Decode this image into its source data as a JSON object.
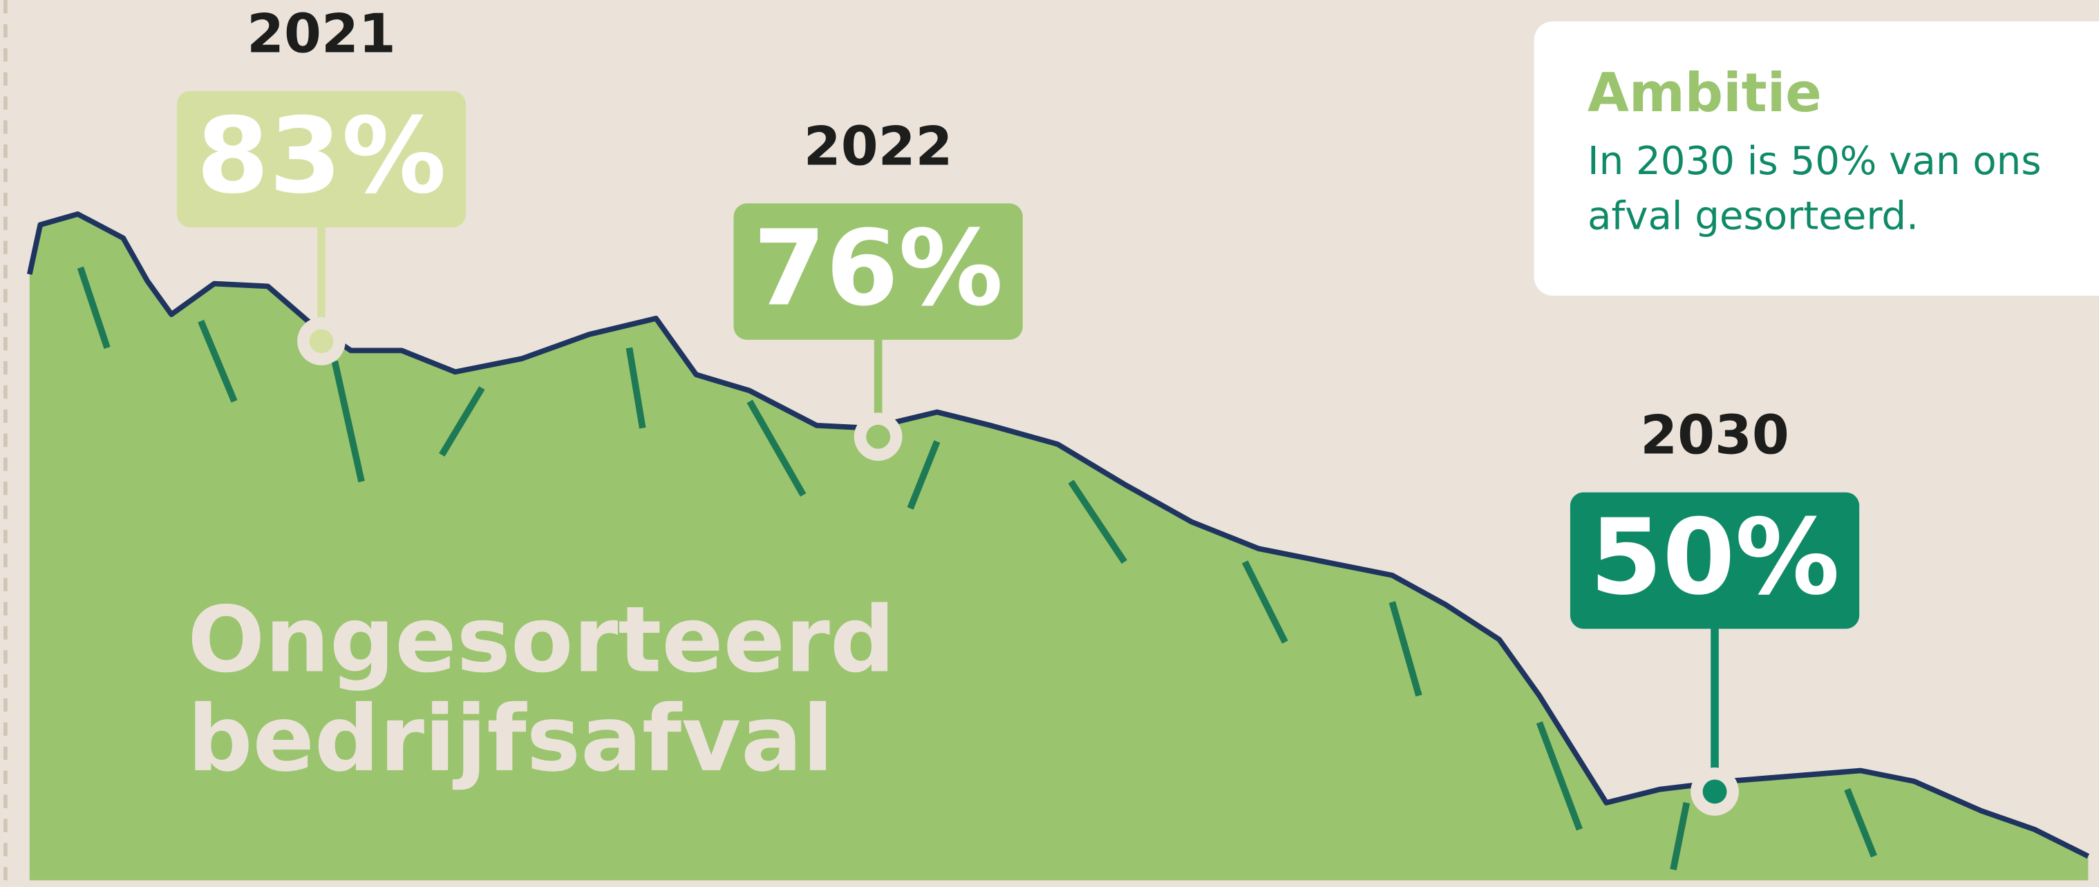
{
  "chart_data": {
    "type": "area",
    "categories": [
      "2021",
      "2022",
      "2030"
    ],
    "values": [
      83,
      76,
      50
    ],
    "value_labels": [
      "83%",
      "76%",
      "50%"
    ],
    "colors": [
      "#d6dfa2",
      "#9bc46f",
      "#0e8a67"
    ],
    "ylim": [
      43.5,
      108
    ],
    "area_label": [
      "Ongesorteerd",
      "bedrijfsafval"
    ],
    "annotation": {
      "title": "Ambitie",
      "lines": [
        "In 2030 is 50% van ons",
        "afval gesorteerd."
      ]
    }
  }
}
